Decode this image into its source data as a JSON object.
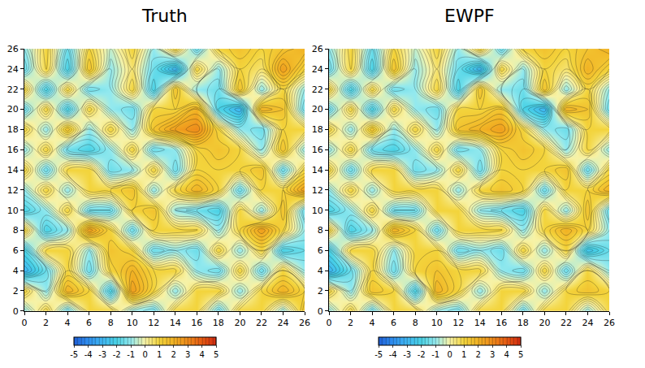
{
  "chart_data": [
    {
      "type": "contour",
      "title": "Truth",
      "x": [
        0,
        2,
        4,
        6,
        8,
        10,
        12,
        14,
        16,
        18,
        20,
        22,
        24,
        26
      ],
      "y": [
        0,
        2,
        4,
        6,
        8,
        10,
        12,
        14,
        16,
        18,
        20,
        22,
        24,
        26
      ],
      "z": [
        [
          -1,
          1,
          -1.5,
          1,
          1,
          -1,
          -1.5,
          1,
          1,
          -1.5,
          1,
          1,
          -1,
          1.5
        ],
        [
          1,
          -1,
          2,
          1,
          -2,
          2.5,
          1,
          -1,
          1,
          1,
          -1,
          1,
          2,
          1
        ],
        [
          -3,
          -1.5,
          1,
          -1.5,
          1,
          2,
          1,
          1,
          -1,
          -1.5,
          1,
          -1.5,
          1,
          -1
        ],
        [
          -2,
          1,
          1,
          -1,
          1.5,
          1,
          -1.5,
          -1,
          -1.5,
          1,
          -1,
          1,
          -2,
          -1.5
        ],
        [
          1,
          -2,
          -1,
          2.5,
          1,
          -1.5,
          1,
          1,
          1,
          -1,
          1,
          2.5,
          1,
          -1
        ],
        [
          -2,
          -1,
          1,
          -1.5,
          -1.5,
          1,
          1.5,
          -1,
          -1.5,
          -2,
          1,
          -1,
          1.5,
          -1.5
        ],
        [
          -1,
          1,
          -1,
          1,
          1,
          1.5,
          -1,
          1,
          2,
          1,
          -1.5,
          1,
          1,
          2.5
        ],
        [
          1,
          -1.5,
          1,
          1,
          -1.5,
          -1,
          1,
          -1.5,
          1,
          1,
          1,
          1.5,
          -1.5,
          1
        ],
        [
          -1,
          1,
          -1.5,
          -2,
          -1,
          1,
          -1.5,
          -1,
          1,
          1.5,
          1,
          -1,
          1.5,
          -1
        ],
        [
          1,
          -1,
          1.5,
          -1,
          1,
          -1,
          1.5,
          2.5,
          3,
          1,
          -1,
          -1.5,
          1,
          1
        ],
        [
          -1.5,
          1,
          -2,
          1,
          -1,
          -1.5,
          1,
          1,
          2,
          -2,
          -3,
          2,
          1.5,
          -1.5
        ],
        [
          1,
          -2,
          1,
          -1.5,
          -1,
          1,
          -2,
          1.5,
          -1,
          -1.5,
          1.5,
          -1,
          1,
          -1
        ],
        [
          -1.5,
          1,
          -2,
          1.5,
          -1,
          0.5,
          -1.5,
          -3,
          1,
          -1,
          1,
          0.5,
          2.5,
          1
        ],
        [
          -1,
          1,
          -1.5,
          1,
          -0.5,
          1,
          -1,
          1,
          -1.5,
          1,
          1.5,
          1,
          1.5,
          2
        ]
      ],
      "xlim": [
        0,
        26
      ],
      "ylim": [
        0,
        26
      ],
      "xticks": [
        0,
        2,
        4,
        6,
        8,
        10,
        12,
        14,
        16,
        18,
        20,
        22,
        24,
        26
      ],
      "yticks": [
        0,
        2,
        4,
        6,
        8,
        10,
        12,
        14,
        16,
        18,
        20,
        22,
        24,
        26
      ],
      "colorbar": {
        "range": [
          -5,
          5
        ],
        "ticks": [
          -5,
          -4,
          -3,
          -2,
          -1,
          0,
          1,
          2,
          3,
          4,
          5
        ],
        "colors": [
          "#1f5fd8",
          "#2f8ff0",
          "#3fb6f2",
          "#49d2e6",
          "#93e9ee",
          "#f7f2a6",
          "#f3d43c",
          "#f1b224",
          "#ef8b1a",
          "#e65a12",
          "#d22a10"
        ]
      }
    },
    {
      "type": "contour",
      "title": "EWPF",
      "x": [
        0,
        2,
        4,
        6,
        8,
        10,
        12,
        14,
        16,
        18,
        20,
        22,
        24,
        26
      ],
      "y": [
        0,
        2,
        4,
        6,
        8,
        10,
        12,
        14,
        16,
        18,
        20,
        22,
        24,
        26
      ],
      "z": [
        [
          -1,
          1,
          -1.5,
          1,
          1,
          -1,
          -1.5,
          1,
          1,
          -1.5,
          1,
          1,
          -1,
          1
        ],
        [
          1,
          -1,
          1.5,
          1,
          -2,
          2,
          1,
          -1,
          1,
          1,
          -1,
          1,
          1.5,
          1
        ],
        [
          -3,
          -1.5,
          1,
          -1.5,
          1,
          1.5,
          1,
          1,
          -1,
          -1.5,
          1,
          -1.5,
          1,
          -1
        ],
        [
          -2,
          1,
          1,
          -1,
          1,
          1,
          -1.5,
          -1,
          -1.5,
          1,
          -1,
          1,
          -2.5,
          -1.5
        ],
        [
          1,
          -2,
          -1,
          2,
          1,
          -1.5,
          1,
          1,
          1,
          -1,
          1,
          2,
          1,
          -1
        ],
        [
          -2,
          -1,
          1,
          -1.5,
          -1.5,
          1,
          1,
          -1,
          -1.5,
          -2,
          1,
          -1,
          1.5,
          -1.5
        ],
        [
          -1,
          1,
          -1,
          1,
          1,
          1,
          -1,
          1,
          1.5,
          1,
          -1.5,
          1,
          1,
          2
        ],
        [
          1,
          -1.5,
          1,
          1,
          -1.5,
          -1,
          1,
          -1.5,
          1,
          1,
          1,
          1.5,
          -1.5,
          1
        ],
        [
          -1,
          1,
          -1.5,
          -2,
          -1,
          1,
          -1.5,
          -1,
          1,
          1.5,
          1,
          -1,
          1,
          -1
        ],
        [
          1,
          -1,
          1.5,
          -1,
          1,
          -1,
          1.5,
          2,
          2.5,
          1,
          -1,
          -1.5,
          1,
          1
        ],
        [
          -1.5,
          1,
          -2,
          1,
          -1,
          -1.5,
          1,
          1,
          1.5,
          -2,
          -3,
          2,
          1.5,
          -1.5
        ],
        [
          1,
          -2,
          1,
          -1.5,
          -1,
          1,
          -2,
          1.5,
          -1,
          -1.5,
          1.5,
          -1,
          1,
          -1
        ],
        [
          -1.5,
          1,
          -2,
          1.5,
          -1,
          0.5,
          -1.5,
          -3,
          1,
          -1,
          1,
          0.5,
          2,
          1
        ],
        [
          -1,
          1,
          -1.5,
          1,
          -0.5,
          1,
          -1,
          1,
          -1.5,
          1,
          1.5,
          1,
          1.5,
          2
        ]
      ],
      "xlim": [
        0,
        26
      ],
      "ylim": [
        0,
        26
      ],
      "xticks": [
        0,
        2,
        4,
        6,
        8,
        10,
        12,
        14,
        16,
        18,
        20,
        22,
        24,
        26
      ],
      "yticks": [
        0,
        2,
        4,
        6,
        8,
        10,
        12,
        14,
        16,
        18,
        20,
        22,
        24,
        26
      ],
      "colorbar": {
        "range": [
          -5,
          5
        ],
        "ticks": [
          -5,
          -4,
          -3,
          -2,
          -1,
          0,
          1,
          2,
          3,
          4,
          5
        ],
        "colors": [
          "#1f5fd8",
          "#2f8ff0",
          "#3fb6f2",
          "#49d2e6",
          "#93e9ee",
          "#f7f2a6",
          "#f3d43c",
          "#f1b224",
          "#ef8b1a",
          "#e65a12",
          "#d22a10"
        ]
      }
    }
  ]
}
